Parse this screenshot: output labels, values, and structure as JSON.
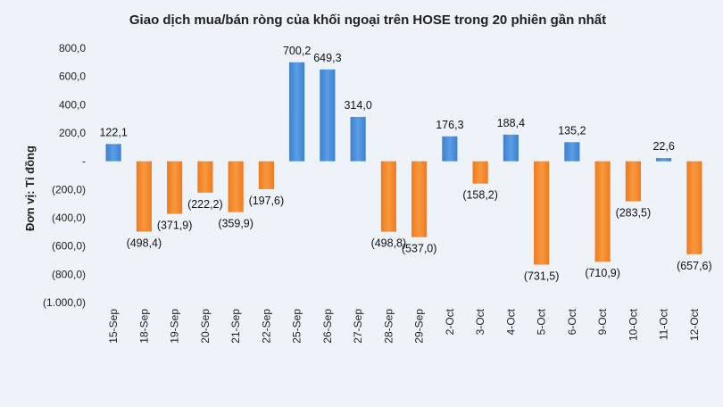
{
  "chart_data": {
    "type": "bar",
    "title": "Giao dịch mua/bán ròng của khối ngoại trên HOSE trong 20 phiên gần nhất",
    "ylabel": "Đơn vị: Tỉ đồng",
    "xlabel": "",
    "ylim": [
      -1000,
      800
    ],
    "yticks": [
      800,
      600,
      400,
      200,
      0,
      -200,
      -400,
      -600,
      -800,
      -1000
    ],
    "ytick_labels": [
      "800,0",
      "600,0",
      "400,0",
      "200,0",
      "-",
      "(200,0)",
      "(400,0)",
      "(600,0)",
      "(800,0)",
      "(1.000,0)"
    ],
    "categories": [
      "15-Sep",
      "18-Sep",
      "19-Sep",
      "20-Sep",
      "21-Sep",
      "22-Sep",
      "25-Sep",
      "26-Sep",
      "27-Sep",
      "28-Sep",
      "29-Sep",
      "2-Oct",
      "3-Oct",
      "4-Oct",
      "5-Oct",
      "6-Oct",
      "9-Oct",
      "10-Oct",
      "11-Oct",
      "12-Oct"
    ],
    "values": [
      122.1,
      -498.4,
      -371.9,
      -222.2,
      -359.9,
      -197.6,
      700.2,
      649.3,
      314.0,
      -498.8,
      -537.0,
      176.3,
      -158.2,
      188.4,
      -731.5,
      135.2,
      -710.9,
      -283.5,
      22.6,
      -657.6
    ],
    "value_labels": [
      "122,1",
      "(498,4)",
      "(371,9)",
      "(222,2)",
      "(359,9)",
      "(197,6)",
      "700,2",
      "649,3",
      "314,0",
      "(498,8)",
      "(537,0)",
      "176,3",
      "(158,2)",
      "188,4",
      "(731,5)",
      "135,2",
      "(710,9)",
      "(283,5)",
      "22,6",
      "(657,6)"
    ],
    "grid": false,
    "legend": "none",
    "colors": {
      "positive": "#4a8fd8",
      "negative": "#f5872e",
      "background": "#eef3f9"
    }
  }
}
